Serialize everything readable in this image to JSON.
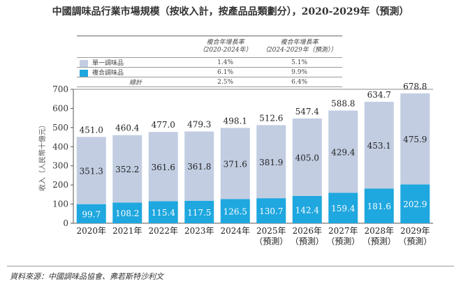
{
  "title": "中國調味品行業市場規模（按收入計，按產品品類劃分），2020-2029年（預測）",
  "table": {
    "headers": [
      "複合年增長率\n（2020-2024年）",
      "複合年增長率\n（2024-2029年（預測））"
    ],
    "rows": [
      {
        "label": "單一調味品",
        "color": "#c2cde2",
        "values": [
          "1.4%",
          "5.1%"
        ]
      },
      {
        "label": "複合調味品",
        "color": "#1fa7df",
        "values": [
          "6.1%",
          "9.9%"
        ]
      },
      {
        "label": "總計",
        "values": [
          "2.5%",
          "6.4%"
        ]
      }
    ]
  },
  "chart_data": {
    "type": "bar",
    "stacked": true,
    "categories": [
      "2020年",
      "2021年",
      "2022年",
      "2023年",
      "2024年",
      "2025年\n(預測)",
      "2026年\n(預測)",
      "2027年\n(預測)",
      "2028年\n(預測)",
      "2029年\n(預測)"
    ],
    "series": [
      {
        "name": "複合調味品",
        "color": "#1fa7df",
        "values": [
          99.7,
          108.2,
          115.4,
          117.5,
          126.5,
          130.7,
          142.4,
          159.4,
          181.6,
          202.9
        ]
      },
      {
        "name": "單一調味品",
        "color": "#c2cde2",
        "values": [
          351.3,
          352.2,
          361.6,
          361.8,
          371.6,
          381.9,
          405.0,
          429.4,
          453.1,
          475.9
        ]
      }
    ],
    "totals": [
      451.0,
      460.4,
      477.0,
      479.3,
      498.1,
      512.6,
      547.4,
      588.8,
      634.7,
      678.8
    ],
    "ylabel": "收入（人民幣十億元）",
    "ylim": [
      0,
      700
    ],
    "yticks": [
      0,
      100,
      200,
      300,
      400,
      500,
      600,
      700
    ]
  },
  "source": "資料來源：中國調味品協會、弗若斯特沙利文"
}
